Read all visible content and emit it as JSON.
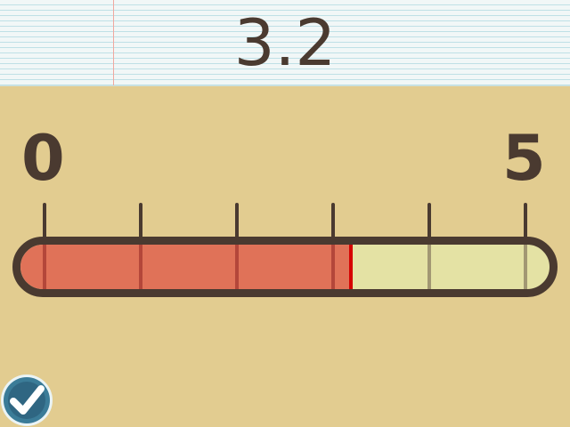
{
  "display": {
    "value_text": "3.2"
  },
  "slider": {
    "min_label": "0",
    "max_label": "5",
    "min": 0,
    "max": 5,
    "value": 3.2,
    "tick_count": 6
  },
  "colors": {
    "background": "#e2cc90",
    "outline": "#4a3a30",
    "fill": "#e07258",
    "fill_edge": "#d60000",
    "empty": "#e4e2a4",
    "check_blue": "#3b7c98"
  },
  "icons": {
    "submit": "checkmark-icon"
  }
}
